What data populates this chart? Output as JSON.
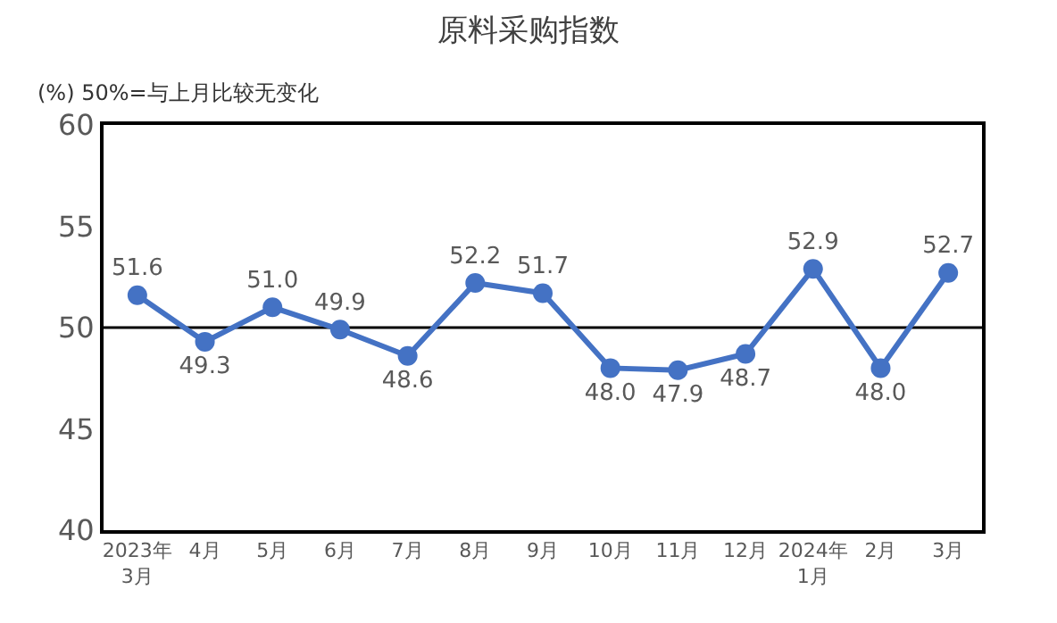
{
  "chart_data": {
    "type": "line",
    "title": "原料采购指数",
    "ylabel": "(%)",
    "annotations": [
      "50%=与上月比较无变化"
    ],
    "categories": [
      "2023年\n3月",
      "4月",
      "5月",
      "6月",
      "7月",
      "8月",
      "9月",
      "10月",
      "11月",
      "12月",
      "2024年\n1月",
      "2月",
      "3月"
    ],
    "series": [
      {
        "color": "#4472c4",
        "values": [
          51.6,
          49.3,
          51.0,
          49.9,
          48.6,
          52.2,
          51.7,
          48.0,
          47.9,
          48.7,
          52.9,
          48.0,
          52.7
        ]
      }
    ],
    "value_labels": [
      "51.6",
      "49.3",
      "51.0",
      "49.9",
      "48.6",
      "52.2",
      "51.7",
      "48.0",
      "47.9",
      "48.7",
      "52.9",
      "48.0",
      "52.7"
    ],
    "ylim": [
      40,
      60
    ],
    "yticks": [
      40,
      45,
      50,
      55,
      60
    ],
    "ref_lines": [
      {
        "axis": "y",
        "value": 50,
        "color": "#000000"
      }
    ],
    "marker": "circle",
    "line_style": "solid",
    "grid": false,
    "legend": false
  }
}
